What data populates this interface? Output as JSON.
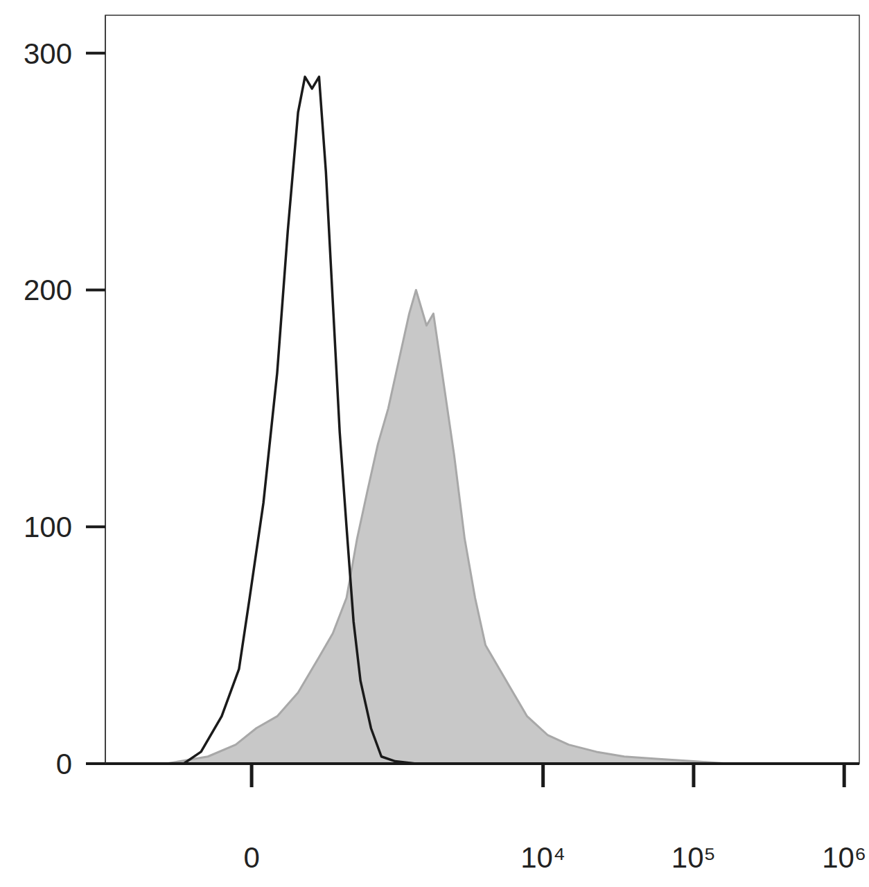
{
  "chart_data": {
    "type": "line",
    "xlim": [
      -1074,
      1260000
    ],
    "ylim": [
      0,
      316
    ],
    "xticks": [
      0,
      {
        "value": 10000,
        "label": "10⁴"
      },
      {
        "value": 100000,
        "label": "10⁵"
      },
      {
        "value": 1000000,
        "label": "10⁶"
      }
    ],
    "yticks": [
      0,
      100,
      200,
      300
    ],
    "grid": false,
    "series": [
      {
        "type": "area",
        "color": "#c8c8c8",
        "x": [
          -398,
          -167,
          -57,
          17,
          93,
          179,
          284,
          368,
          468,
          559,
          661,
          784,
          923,
          1088,
          1281,
          1424,
          1675,
          1863,
          2188,
          2566,
          3011,
          3533,
          4144,
          5123,
          6331,
          7835,
          10765,
          14800,
          22640,
          34640,
          58800,
          100000,
          170000
        ],
        "values": [
          0,
          3,
          8,
          15,
          20,
          30,
          45,
          55,
          70,
          95,
          115,
          135,
          150,
          170,
          190,
          200,
          185,
          190,
          160,
          130,
          95,
          70,
          50,
          40,
          30,
          20,
          12,
          8,
          5,
          3,
          2,
          1,
          0
        ]
      },
      {
        "type": "line",
        "color": "#1a1a1a",
        "x": [
          -287,
          -198,
          -110,
          -45,
          -7,
          42,
          93,
          135,
          179,
          211,
          246,
          284,
          324,
          368,
          416,
          468,
          527,
          591,
          701,
          828,
          1030,
          1424
        ],
        "values": [
          0,
          5,
          20,
          40,
          70,
          110,
          165,
          225,
          275,
          290,
          285,
          290,
          250,
          195,
          140,
          100,
          60,
          35,
          15,
          3,
          1,
          0
        ]
      }
    ]
  }
}
